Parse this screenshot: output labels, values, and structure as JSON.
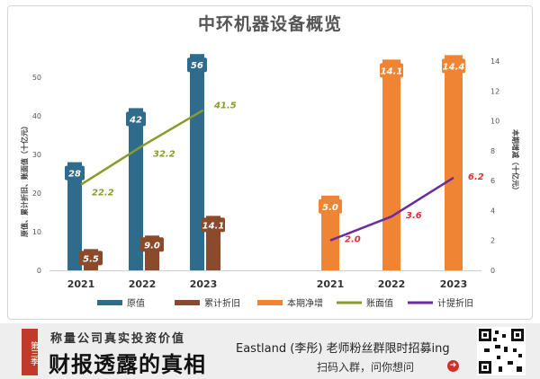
{
  "title": "中环机器设备概览",
  "chart_data": [
    {
      "type": "bar+line",
      "categories": [
        "2021",
        "2022",
        "2023"
      ],
      "series": [
        {
          "name": "原值",
          "kind": "bar",
          "color": "#2e6b8c",
          "values": [
            28,
            42,
            56
          ]
        },
        {
          "name": "累计折旧",
          "kind": "bar",
          "color": "#8b4a2b",
          "values": [
            5.5,
            9.0,
            14.1
          ]
        },
        {
          "name": "账面值",
          "kind": "line",
          "color": "#8a9a2b",
          "values": [
            22.2,
            32.2,
            41.5
          ]
        }
      ],
      "ylabel": "原值、累计折旧、账面值（十亿元）",
      "ylim": [
        0,
        55
      ],
      "yticks": [
        0,
        10,
        20,
        30,
        40,
        50
      ]
    },
    {
      "type": "bar+line",
      "categories": [
        "2021",
        "2022",
        "2023"
      ],
      "series": [
        {
          "name": "本期净增",
          "kind": "bar",
          "color": "#ee8434",
          "values": [
            5.0,
            14.1,
            14.4
          ]
        },
        {
          "name": "计提折旧",
          "kind": "line",
          "color": "#6a2ca0",
          "values": [
            2.0,
            3.6,
            6.2
          ]
        }
      ],
      "ylabel": "本期增减（十亿元）",
      "ylim": [
        0,
        14.5
      ],
      "yticks": [
        0,
        2,
        4,
        6,
        8,
        10,
        12,
        14
      ]
    }
  ],
  "legend": [
    {
      "label": "原值",
      "color": "#2e6b8c",
      "shape": "bar"
    },
    {
      "label": "累计折旧",
      "color": "#8b4a2b",
      "shape": "bar"
    },
    {
      "label": "本期净增",
      "color": "#ee8434",
      "shape": "bar"
    },
    {
      "label": "账面值",
      "color": "#8a9a2b",
      "shape": "line"
    },
    {
      "label": "计提折旧",
      "color": "#6a2ca0",
      "shape": "line"
    }
  ],
  "footer": {
    "badge": "第三季",
    "subtitle": "称量公司真实投资价值",
    "title": "财报透露的真相",
    "recruit": "Eastland (李彤) 老师粉丝群限时招募ing",
    "scan": "扫码入群，问你想问",
    "arrow": "➜"
  }
}
